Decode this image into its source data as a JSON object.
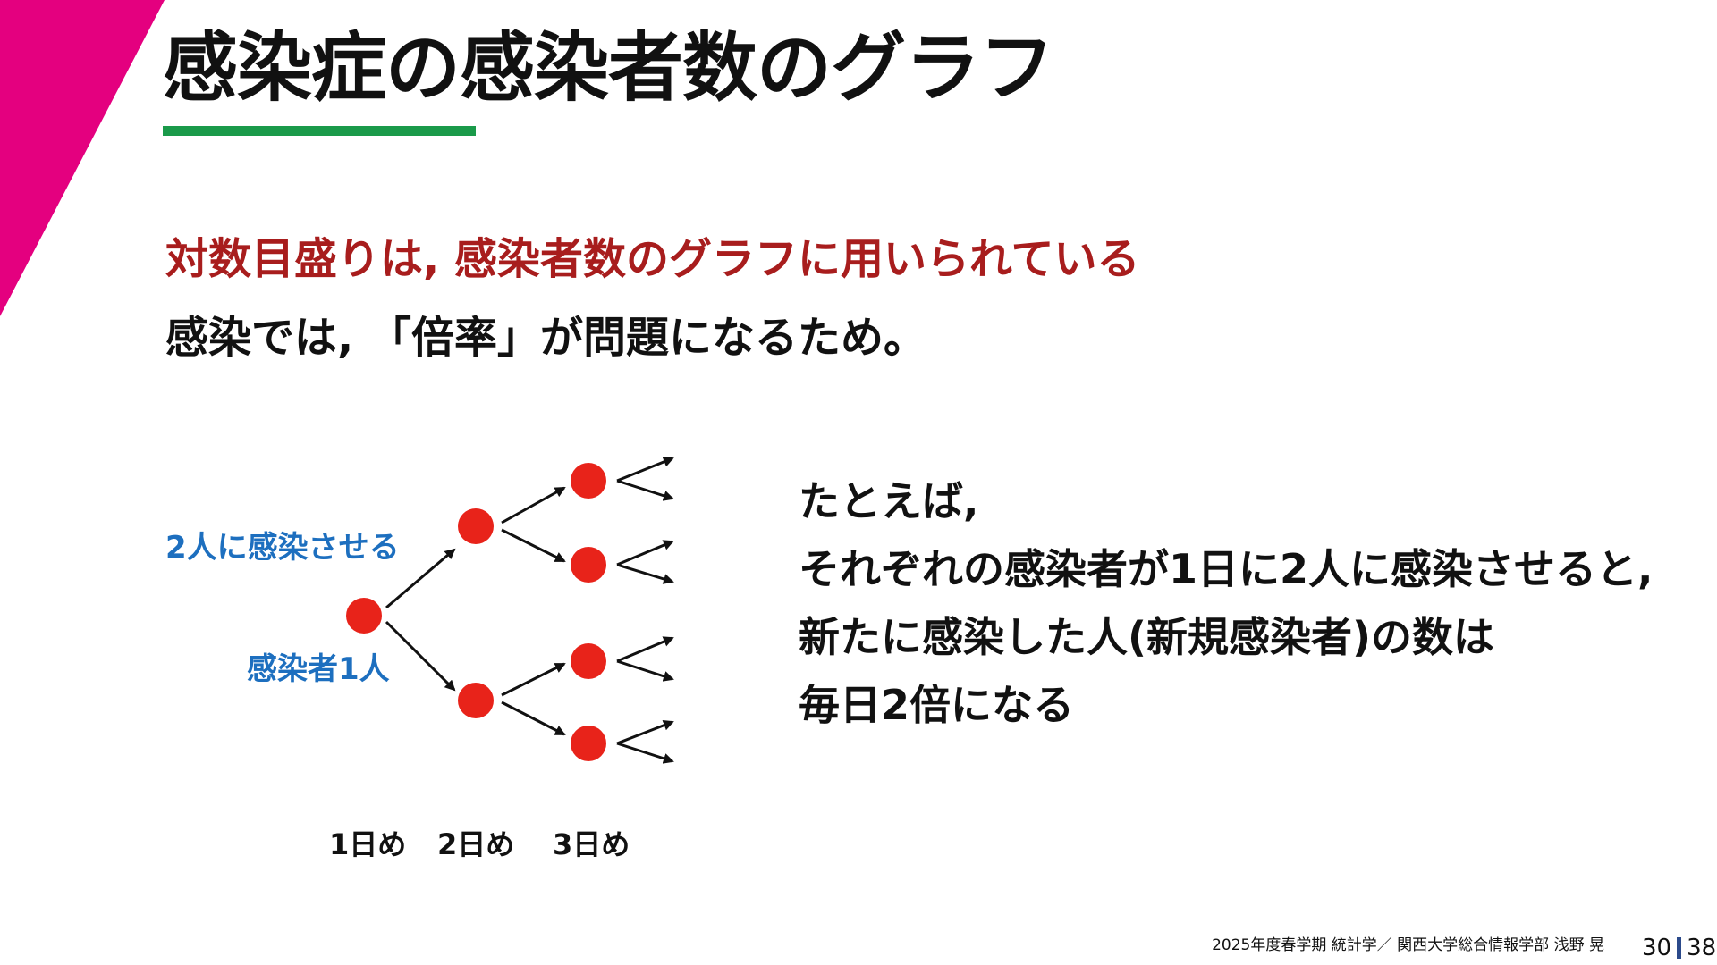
{
  "colors": {
    "accent_magenta": "#E4007F",
    "underline_green": "#1A9A4A",
    "lead_red": "#A81D1D",
    "label_blue": "#1D6FBF",
    "dot_red": "#E8231A",
    "page_bar": "#2B4A8B"
  },
  "slide": {
    "title": "感染症の感染者数のグラフ",
    "lead1": "対数目盛りは, 感染者数のグラフに用いられている",
    "lead2": "感染では, 「倍率」が問題になるため。",
    "diagram": {
      "label_spread": "2人に感染させる",
      "label_start": "感染者1人",
      "day_labels": [
        "1日め",
        "2日め",
        "3日め"
      ]
    },
    "explanation": [
      "たとえば,",
      "それぞれの感染者が1日に2人に感染させると,",
      "新たに感染した人(新規感染者)の数は",
      "毎日2倍になる"
    ]
  },
  "footer": {
    "course": "2025年度春学期  統計学／  関西大学総合情報学部  浅野  晃",
    "page": "30",
    "total": "38"
  }
}
